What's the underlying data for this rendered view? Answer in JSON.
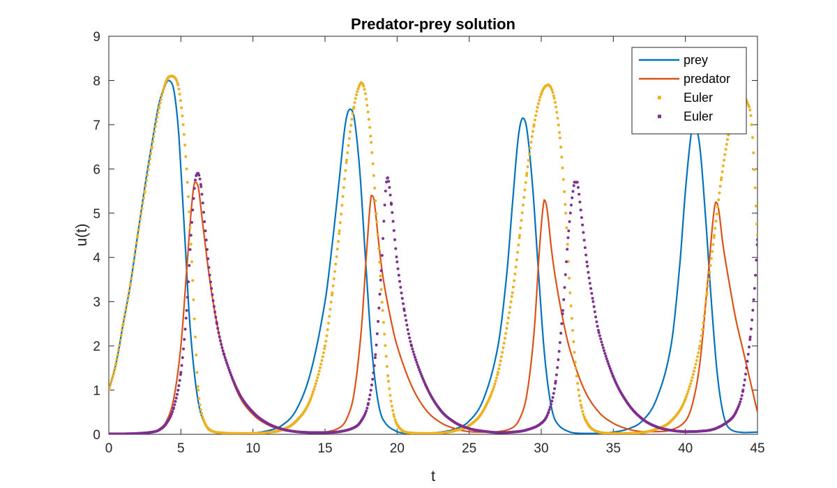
{
  "chart_data": {
    "type": "line",
    "title": "Predator-prey solution",
    "xlabel": "t",
    "ylabel": "u(t)",
    "xlim": [
      0,
      45
    ],
    "ylim": [
      0,
      9
    ],
    "xticks": [
      0,
      5,
      10,
      15,
      20,
      25,
      30,
      35,
      40,
      45
    ],
    "yticks": [
      0,
      1,
      2,
      3,
      4,
      5,
      6,
      7,
      8,
      9
    ],
    "grid": false,
    "legend_position": "top-right",
    "series": [
      {
        "name": "prey",
        "style": "line",
        "color": "#0072BD",
        "points": [
          [
            0,
            1.0
          ],
          [
            0.5,
            1.6
          ],
          [
            1.0,
            2.5
          ],
          [
            1.5,
            3.4
          ],
          [
            2.0,
            4.5
          ],
          [
            2.5,
            5.6
          ],
          [
            3.0,
            6.6
          ],
          [
            3.5,
            7.5
          ],
          [
            4.0,
            7.95
          ],
          [
            4.2,
            8.0
          ],
          [
            4.5,
            7.8
          ],
          [
            4.8,
            7.0
          ],
          [
            5.0,
            6.0
          ],
          [
            5.3,
            4.3
          ],
          [
            5.6,
            2.6
          ],
          [
            6.0,
            1.2
          ],
          [
            6.4,
            0.45
          ],
          [
            7.0,
            0.12
          ],
          [
            8.0,
            0.03
          ],
          [
            9.0,
            0.02
          ],
          [
            10.0,
            0.03
          ],
          [
            11.0,
            0.08
          ],
          [
            12.0,
            0.2
          ],
          [
            13.0,
            0.55
          ],
          [
            14.0,
            1.4
          ],
          [
            15.0,
            3.0
          ],
          [
            15.5,
            4.3
          ],
          [
            16.0,
            5.8
          ],
          [
            16.4,
            7.0
          ],
          [
            16.7,
            7.35
          ],
          [
            17.0,
            7.2
          ],
          [
            17.4,
            6.0
          ],
          [
            17.8,
            4.0
          ],
          [
            18.2,
            2.1
          ],
          [
            18.6,
            0.9
          ],
          [
            19.0,
            0.35
          ],
          [
            20.0,
            0.06
          ],
          [
            21.0,
            0.02
          ],
          [
            22.0,
            0.02
          ],
          [
            23.0,
            0.05
          ],
          [
            24.0,
            0.12
          ],
          [
            25.0,
            0.3
          ],
          [
            26.0,
            0.8
          ],
          [
            27.0,
            2.0
          ],
          [
            27.6,
            3.6
          ],
          [
            28.0,
            5.2
          ],
          [
            28.4,
            6.7
          ],
          [
            28.7,
            7.15
          ],
          [
            29.0,
            6.9
          ],
          [
            29.4,
            5.6
          ],
          [
            29.8,
            3.7
          ],
          [
            30.2,
            1.9
          ],
          [
            30.6,
            0.8
          ],
          [
            31.0,
            0.3
          ],
          [
            32.0,
            0.05
          ],
          [
            33.0,
            0.02
          ],
          [
            34.0,
            0.02
          ],
          [
            35.0,
            0.05
          ],
          [
            36.0,
            0.12
          ],
          [
            37.0,
            0.3
          ],
          [
            38.0,
            0.8
          ],
          [
            39.0,
            2.0
          ],
          [
            39.6,
            3.8
          ],
          [
            40.0,
            5.5
          ],
          [
            40.4,
            6.8
          ],
          [
            40.6,
            7.05
          ],
          [
            41.0,
            6.5
          ],
          [
            41.4,
            4.9
          ],
          [
            41.8,
            3.0
          ],
          [
            42.2,
            1.4
          ],
          [
            42.6,
            0.5
          ],
          [
            43.0,
            0.15
          ],
          [
            44.0,
            0.04
          ],
          [
            45.0,
            0.05
          ]
        ]
      },
      {
        "name": "predator",
        "style": "line",
        "color": "#D95319",
        "points": [
          [
            0,
            0.01
          ],
          [
            1.0,
            0.01
          ],
          [
            2.0,
            0.02
          ],
          [
            3.0,
            0.05
          ],
          [
            3.5,
            0.12
          ],
          [
            4.0,
            0.3
          ],
          [
            4.5,
            0.8
          ],
          [
            5.0,
            2.0
          ],
          [
            5.4,
            3.7
          ],
          [
            5.7,
            5.0
          ],
          [
            5.95,
            5.7
          ],
          [
            6.2,
            5.6
          ],
          [
            6.5,
            4.8
          ],
          [
            7.0,
            3.5
          ],
          [
            7.5,
            2.5
          ],
          [
            8.0,
            1.8
          ],
          [
            9.0,
            0.9
          ],
          [
            10.0,
            0.45
          ],
          [
            11.0,
            0.22
          ],
          [
            12.0,
            0.1
          ],
          [
            13.0,
            0.05
          ],
          [
            14.0,
            0.04
          ],
          [
            15.0,
            0.05
          ],
          [
            16.0,
            0.15
          ],
          [
            16.5,
            0.35
          ],
          [
            17.0,
            0.9
          ],
          [
            17.5,
            2.3
          ],
          [
            17.9,
            4.2
          ],
          [
            18.2,
            5.4
          ],
          [
            18.4,
            5.3
          ],
          [
            18.7,
            4.4
          ],
          [
            19.0,
            3.6
          ],
          [
            19.5,
            2.7
          ],
          [
            20.0,
            2.0
          ],
          [
            21.0,
            1.1
          ],
          [
            22.0,
            0.55
          ],
          [
            23.0,
            0.27
          ],
          [
            24.0,
            0.13
          ],
          [
            25.0,
            0.06
          ],
          [
            26.0,
            0.05
          ],
          [
            27.0,
            0.06
          ],
          [
            28.0,
            0.15
          ],
          [
            28.5,
            0.35
          ],
          [
            29.0,
            0.9
          ],
          [
            29.5,
            2.3
          ],
          [
            29.9,
            4.3
          ],
          [
            30.2,
            5.3
          ],
          [
            30.4,
            5.1
          ],
          [
            30.7,
            4.2
          ],
          [
            31.0,
            3.5
          ],
          [
            31.5,
            2.6
          ],
          [
            32.0,
            1.9
          ],
          [
            33.0,
            1.0
          ],
          [
            34.0,
            0.5
          ],
          [
            35.0,
            0.25
          ],
          [
            36.0,
            0.12
          ],
          [
            37.0,
            0.06
          ],
          [
            38.0,
            0.06
          ],
          [
            39.0,
            0.1
          ],
          [
            40.0,
            0.3
          ],
          [
            40.5,
            0.7
          ],
          [
            41.0,
            1.6
          ],
          [
            41.5,
            3.3
          ],
          [
            41.9,
            4.8
          ],
          [
            42.1,
            5.25
          ],
          [
            42.3,
            5.1
          ],
          [
            42.6,
            4.3
          ],
          [
            43.0,
            3.5
          ],
          [
            43.5,
            2.6
          ],
          [
            44.0,
            1.9
          ],
          [
            44.5,
            1.2
          ],
          [
            45.0,
            0.5
          ]
        ]
      },
      {
        "name": "Euler",
        "style": "markers",
        "color": "#EDB120",
        "points": [
          [
            0,
            1.0
          ],
          [
            0.5,
            1.6
          ],
          [
            1.0,
            2.5
          ],
          [
            1.5,
            3.4
          ],
          [
            2.0,
            4.5
          ],
          [
            2.5,
            5.5
          ],
          [
            3.0,
            6.5
          ],
          [
            3.5,
            7.4
          ],
          [
            4.0,
            8.0
          ],
          [
            4.4,
            8.1
          ],
          [
            4.8,
            7.9
          ],
          [
            5.1,
            7.2
          ],
          [
            5.4,
            6.0
          ],
          [
            5.7,
            4.3
          ],
          [
            6.0,
            2.2
          ],
          [
            6.2,
            1.0
          ],
          [
            6.5,
            0.4
          ],
          [
            7.0,
            0.1
          ],
          [
            8.0,
            0.03
          ],
          [
            9.0,
            0.02
          ],
          [
            10.0,
            0.02
          ],
          [
            11.0,
            0.04
          ],
          [
            12.0,
            0.1
          ],
          [
            13.0,
            0.3
          ],
          [
            14.0,
            0.8
          ],
          [
            15.0,
            2.0
          ],
          [
            15.5,
            3.2
          ],
          [
            16.0,
            4.6
          ],
          [
            16.5,
            6.2
          ],
          [
            17.0,
            7.4
          ],
          [
            17.5,
            7.95
          ],
          [
            17.8,
            7.7
          ],
          [
            18.2,
            6.6
          ],
          [
            18.6,
            4.8
          ],
          [
            19.0,
            2.8
          ],
          [
            19.4,
            1.2
          ],
          [
            19.8,
            0.4
          ],
          [
            20.3,
            0.1
          ],
          [
            21.0,
            0.03
          ],
          [
            22.0,
            0.02
          ],
          [
            23.0,
            0.03
          ],
          [
            24.0,
            0.08
          ],
          [
            25.0,
            0.2
          ],
          [
            26.0,
            0.55
          ],
          [
            27.0,
            1.4
          ],
          [
            28.0,
            3.2
          ],
          [
            28.5,
            4.5
          ],
          [
            29.0,
            5.9
          ],
          [
            29.5,
            7.0
          ],
          [
            30.0,
            7.7
          ],
          [
            30.5,
            7.9
          ],
          [
            30.9,
            7.6
          ],
          [
            31.3,
            6.7
          ],
          [
            31.7,
            5.0
          ],
          [
            32.0,
            3.2
          ],
          [
            32.4,
            1.5
          ],
          [
            32.8,
            0.6
          ],
          [
            33.3,
            0.2
          ],
          [
            34.0,
            0.05
          ],
          [
            35.0,
            0.02
          ],
          [
            36.0,
            0.02
          ],
          [
            37.0,
            0.04
          ],
          [
            38.0,
            0.12
          ],
          [
            39.0,
            0.3
          ],
          [
            40.0,
            0.8
          ],
          [
            41.0,
            2.0
          ],
          [
            41.5,
            3.2
          ],
          [
            42.0,
            4.5
          ],
          [
            42.5,
            5.8
          ],
          [
            43.0,
            6.8
          ],
          [
            43.5,
            7.4
          ],
          [
            44.0,
            7.6
          ],
          [
            44.3,
            7.5
          ],
          [
            44.6,
            7.0
          ],
          [
            45.0,
            4.5
          ]
        ]
      },
      {
        "name": "Euler",
        "style": "markers",
        "color": "#7E2F8E",
        "points": [
          [
            0,
            0.01
          ],
          [
            1.0,
            0.01
          ],
          [
            2.0,
            0.02
          ],
          [
            3.0,
            0.05
          ],
          [
            3.5,
            0.1
          ],
          [
            4.0,
            0.25
          ],
          [
            4.5,
            0.6
          ],
          [
            5.0,
            1.4
          ],
          [
            5.4,
            2.8
          ],
          [
            5.7,
            4.5
          ],
          [
            6.0,
            5.75
          ],
          [
            6.2,
            5.9
          ],
          [
            6.4,
            5.6
          ],
          [
            6.7,
            4.6
          ],
          [
            7.0,
            3.6
          ],
          [
            7.5,
            2.5
          ],
          [
            8.0,
            1.8
          ],
          [
            9.0,
            0.95
          ],
          [
            10.0,
            0.5
          ],
          [
            11.0,
            0.25
          ],
          [
            12.0,
            0.12
          ],
          [
            13.0,
            0.06
          ],
          [
            14.0,
            0.04
          ],
          [
            15.0,
            0.04
          ],
          [
            16.0,
            0.06
          ],
          [
            17.0,
            0.15
          ],
          [
            17.5,
            0.3
          ],
          [
            18.0,
            0.7
          ],
          [
            18.5,
            1.8
          ],
          [
            18.9,
            3.7
          ],
          [
            19.2,
            5.5
          ],
          [
            19.35,
            5.8
          ],
          [
            19.6,
            5.2
          ],
          [
            20.0,
            3.9
          ],
          [
            20.5,
            2.8
          ],
          [
            21.0,
            2.0
          ],
          [
            22.0,
            1.1
          ],
          [
            23.0,
            0.55
          ],
          [
            24.0,
            0.27
          ],
          [
            25.0,
            0.13
          ],
          [
            26.0,
            0.07
          ],
          [
            27.0,
            0.04
          ],
          [
            28.0,
            0.05
          ],
          [
            29.0,
            0.1
          ],
          [
            30.0,
            0.25
          ],
          [
            30.5,
            0.5
          ],
          [
            31.0,
            1.2
          ],
          [
            31.5,
            2.8
          ],
          [
            31.9,
            4.6
          ],
          [
            32.3,
            5.7
          ],
          [
            32.5,
            5.7
          ],
          [
            32.8,
            4.9
          ],
          [
            33.2,
            3.8
          ],
          [
            33.6,
            3.0
          ],
          [
            34.0,
            2.3
          ],
          [
            35.0,
            1.3
          ],
          [
            36.0,
            0.7
          ],
          [
            37.0,
            0.35
          ],
          [
            38.0,
            0.17
          ],
          [
            39.0,
            0.09
          ],
          [
            40.0,
            0.06
          ],
          [
            41.0,
            0.07
          ],
          [
            42.0,
            0.12
          ],
          [
            43.0,
            0.3
          ],
          [
            43.5,
            0.5
          ],
          [
            44.0,
            1.0
          ],
          [
            44.5,
            2.2
          ],
          [
            44.8,
            3.3
          ],
          [
            45.0,
            4.4
          ]
        ]
      }
    ]
  }
}
